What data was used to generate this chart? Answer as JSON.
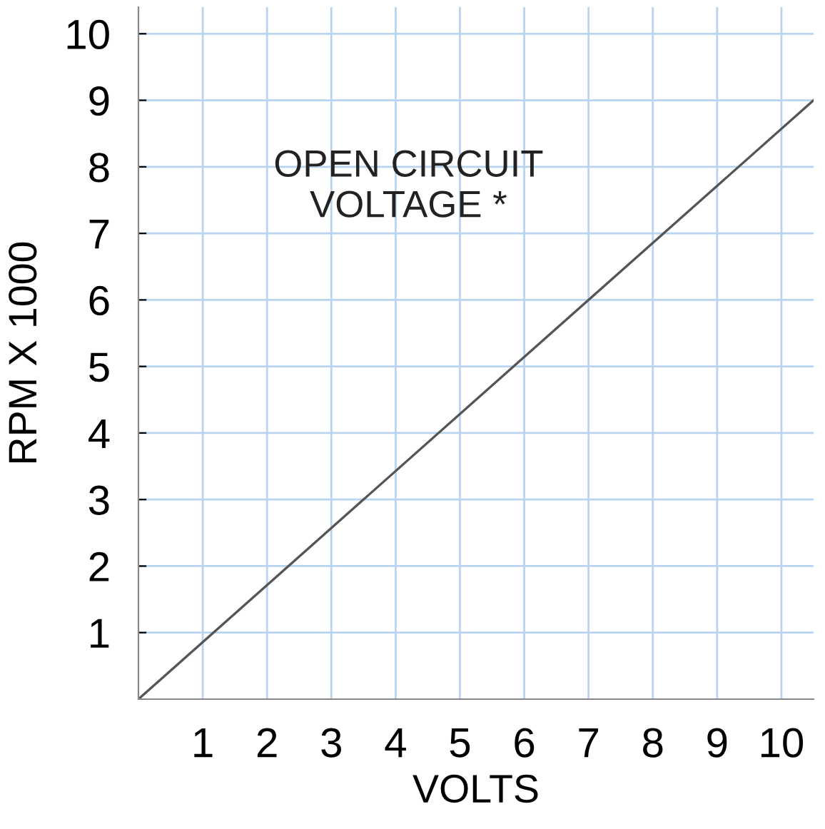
{
  "chart_data": {
    "type": "line",
    "xlabel": "VOLTS",
    "ylabel": "RPM X 1000",
    "x": [
      0,
      10.5
    ],
    "series": [
      {
        "color": "#555555",
        "values": [
          0,
          9.0
        ]
      }
    ],
    "xlim": [
      0,
      10.5
    ],
    "ylim": [
      0,
      10.4
    ],
    "xticks": [
      1,
      2,
      3,
      4,
      5,
      6,
      7,
      8,
      9,
      10
    ],
    "yticks": [
      1,
      2,
      3,
      4,
      5,
      6,
      7,
      8,
      9,
      10
    ],
    "grid": true,
    "marker": "none",
    "line_style": "solid",
    "legend": false,
    "annotations": [
      "OPEN CIRCUIT\nVOLTAGE *"
    ]
  }
}
